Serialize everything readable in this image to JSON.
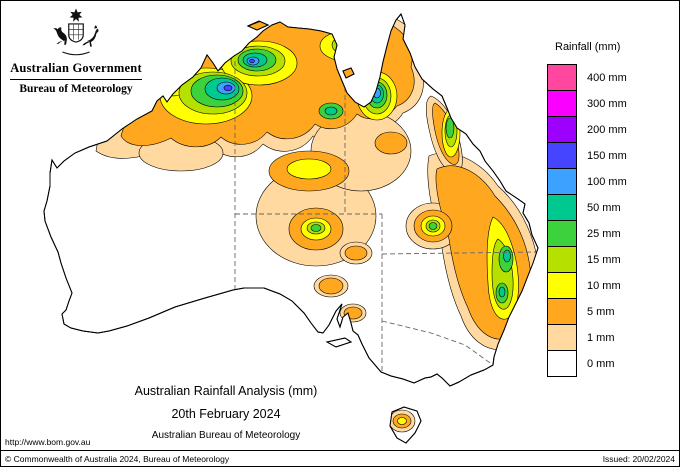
{
  "header": {
    "logo_icon": "australian-coat-of-arms",
    "government_title": "Australian Government",
    "bureau_title": "Bureau of Meteorology"
  },
  "legend": {
    "title": "Rainfall (mm)",
    "items": [
      {
        "label": "400 mm",
        "color": "#ff47a0"
      },
      {
        "label": "300 mm",
        "color": "#fa00ff"
      },
      {
        "label": "200 mm",
        "color": "#9c00ff"
      },
      {
        "label": "150 mm",
        "color": "#4545ff"
      },
      {
        "label": "100 mm",
        "color": "#3da1ff"
      },
      {
        "label": "50 mm",
        "color": "#00c98f"
      },
      {
        "label": "25 mm",
        "color": "#3dd23d"
      },
      {
        "label": "15 mm",
        "color": "#b5e000"
      },
      {
        "label": "10 mm",
        "color": "#ffff00"
      },
      {
        "label": "5 mm",
        "color": "#ffa81f"
      },
      {
        "label": "1 mm",
        "color": "#ffd9a0"
      },
      {
        "label": "0 mm",
        "color": "#ffffff"
      }
    ]
  },
  "caption": {
    "line1": "Australian Rainfall Analysis (mm)",
    "line2": "20th February 2024",
    "line3": "Australian Bureau of Meteorology"
  },
  "footer": {
    "url": "http://www.bom.gov.au",
    "copyright": "© Commonwealth of Australia 2024, Bureau of Meteorology",
    "issued": "Issued: 20/02/2024"
  }
}
